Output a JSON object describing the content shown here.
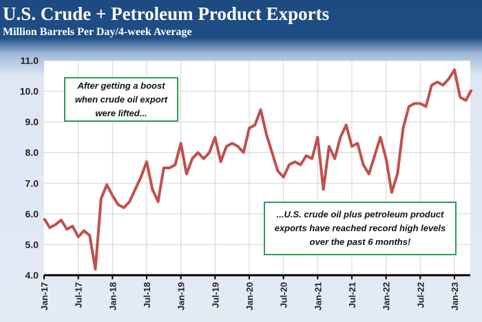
{
  "chart_data": {
    "type": "line",
    "title": "U.S. Crude + Petroleum Product Exports",
    "subtitle": "Million Barrels Per Day/4-week Average",
    "ylim": [
      4.0,
      11.0
    ],
    "yticks": [
      "4.0",
      "5.0",
      "6.0",
      "7.0",
      "8.0",
      "9.0",
      "10.0",
      "11.0"
    ],
    "xticks": [
      "Jan-17",
      "Jul-17",
      "Jan-18",
      "Jul-18",
      "Jan-19",
      "Jul-19",
      "Jan-20",
      "Jul-20",
      "Jan-21",
      "Jul-21",
      "Jan-22",
      "Jul-22",
      "Jan-23"
    ],
    "grid": true,
    "line_color": "#c0504d",
    "start_month": "Jan-17",
    "values": [
      5.85,
      5.55,
      5.65,
      5.8,
      5.5,
      5.6,
      5.25,
      5.45,
      5.3,
      4.2,
      6.5,
      6.95,
      6.6,
      6.3,
      6.2,
      6.4,
      6.8,
      7.2,
      7.7,
      6.8,
      6.4,
      7.5,
      7.5,
      7.6,
      8.3,
      7.3,
      7.8,
      8.0,
      7.8,
      8.0,
      8.5,
      7.7,
      8.2,
      8.3,
      8.2,
      8.0,
      8.8,
      8.9,
      9.4,
      8.6,
      8.0,
      7.4,
      7.2,
      7.6,
      7.7,
      7.6,
      7.9,
      7.8,
      8.5,
      6.8,
      8.2,
      7.8,
      8.5,
      8.9,
      8.2,
      8.3,
      7.6,
      7.3,
      7.9,
      8.5,
      7.8,
      6.7,
      7.3,
      8.8,
      9.5,
      9.6,
      9.6,
      9.5,
      10.2,
      10.3,
      10.2,
      10.4,
      10.7,
      9.8,
      9.7,
      10.05
    ],
    "annotations": [
      "After getting a boost when crude oil export were lifted...",
      "...U.S. crude oil plus petroleum product exports have reached record high levels over the past 6 months!"
    ]
  }
}
